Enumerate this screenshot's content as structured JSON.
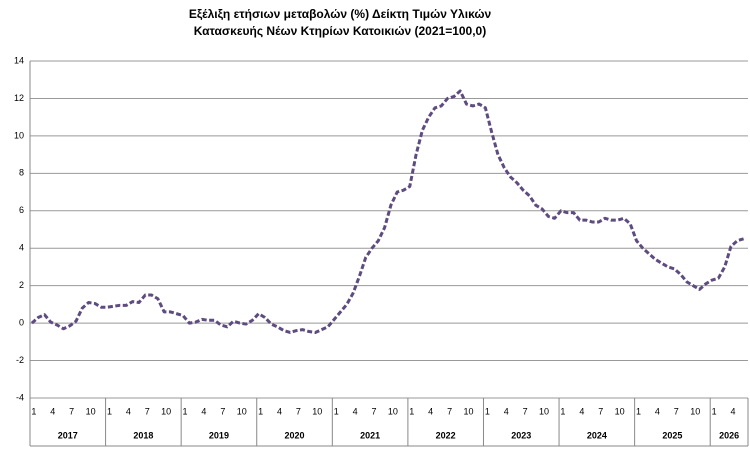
{
  "chart_data": {
    "type": "line",
    "title": [
      "Εξέλιξη ετήσιων μεταβολών (%) Δείκτη Τιμών Υλικών",
      "Κατασκευής Νέων Κτηρίων Κατοικιών (2021=100,0)"
    ],
    "categories": [
      "1",
      null,
      null,
      "4",
      null,
      null,
      "7",
      null,
      null,
      "10",
      null,
      null,
      "1",
      null,
      null,
      "4",
      null,
      null,
      "7",
      null,
      null,
      "10",
      null,
      null,
      "1",
      null,
      null,
      "4",
      null,
      null,
      "7",
      null,
      null,
      "10",
      null,
      null,
      "1",
      null,
      null,
      "4",
      null,
      null,
      "7",
      null,
      null,
      "10",
      null,
      null,
      "1",
      null,
      null,
      "4",
      null,
      null,
      "7",
      null,
      null,
      "10",
      null,
      null,
      "1",
      null,
      null,
      "4",
      null,
      null,
      "7",
      null,
      null,
      "10",
      null,
      null,
      "1",
      null,
      null,
      "4",
      null,
      null,
      "7",
      null,
      null,
      "10",
      null,
      null,
      "1",
      null,
      null,
      "4",
      null,
      null,
      "7",
      null,
      null,
      "10",
      null,
      null,
      "1",
      null,
      null,
      "4",
      null,
      null,
      "7",
      null,
      null,
      "10",
      null,
      null,
      "1",
      null,
      null,
      "4",
      null,
      null
    ],
    "years": [
      "2017",
      "2018",
      "2019",
      "2020",
      "2021",
      "2022",
      "2023",
      "2024",
      "2025",
      "2026"
    ],
    "series": [
      {
        "color": "#5e4b80",
        "values": [
          0,
          0.3,
          0.45,
          0.05,
          -0.1,
          -0.3,
          -0.15,
          0.1,
          0.8,
          1.1,
          1.05,
          0.85,
          0.85,
          0.9,
          0.95,
          0.95,
          1.15,
          1.1,
          1.5,
          1.5,
          1.3,
          0.6,
          0.6,
          0.5,
          0.4,
          0,
          0.05,
          0.2,
          0.15,
          0.15,
          -0.1,
          -0.2,
          0.1,
          0,
          -0.05,
          0.15,
          0.5,
          0.3,
          -0.05,
          -0.2,
          -0.4,
          -0.5,
          -0.4,
          -0.35,
          -0.45,
          -0.5,
          -0.35,
          -0.2,
          0.2,
          0.6,
          1.0,
          1.6,
          2.5,
          3.5,
          4.0,
          4.4,
          5.1,
          6.3,
          7.0,
          7.1,
          7.3,
          9.0,
          10.3,
          11.0,
          11.5,
          11.6,
          12.0,
          12.1,
          12.4,
          11.7,
          11.6,
          11.7,
          11.5,
          10.2,
          9.0,
          8.3,
          7.8,
          7.5,
          7.1,
          6.8,
          6.3,
          6.1,
          5.7,
          5.6,
          6.0,
          5.9,
          5.9,
          5.5,
          5.5,
          5.4,
          5.4,
          5.6,
          5.5,
          5.5,
          5.6,
          5.3,
          4.4,
          4.0,
          3.7,
          3.4,
          3.2,
          3.0,
          2.9,
          2.6,
          2.2,
          2.0,
          1.8,
          2.1,
          2.3,
          2.4,
          3.0,
          4.1,
          4.4,
          4.5
        ]
      }
    ],
    "ylim": [
      -4,
      14
    ],
    "yticks": [
      -4,
      -2,
      0,
      2,
      4,
      6,
      8,
      10,
      12,
      14
    ],
    "grid": true
  }
}
